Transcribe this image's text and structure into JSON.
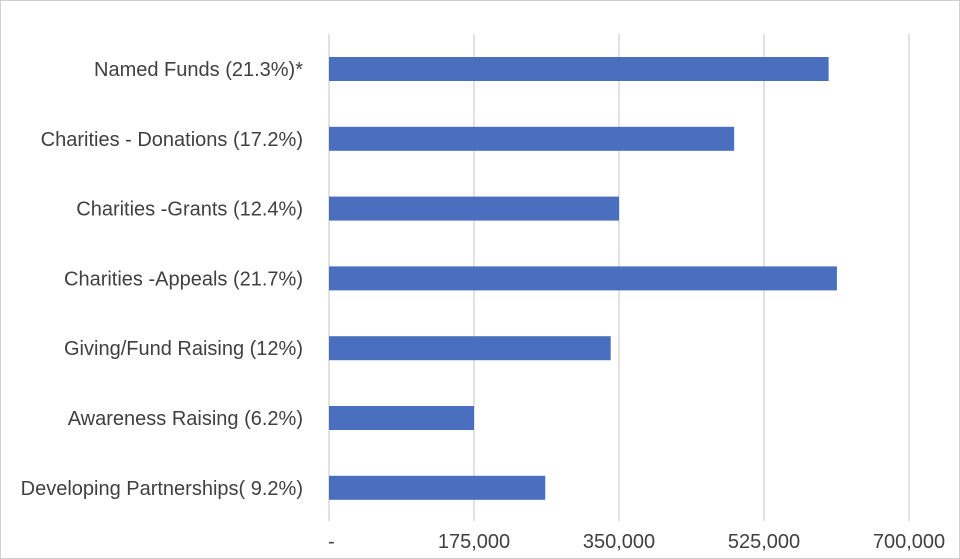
{
  "chart_data": {
    "type": "bar",
    "orientation": "horizontal",
    "categories": [
      "Named Funds (21.3%)*",
      "Charities - Donations (17.2%)",
      "Charities -Grants (12.4%)",
      "Charities -Appeals (21.7%)",
      "Giving/Fund Raising (12%)",
      "Awareness Raising (6.2%)",
      "Developing Partnerships( 9.2%)"
    ],
    "values": [
      603000,
      489000,
      350000,
      613000,
      340000,
      175000,
      261000
    ],
    "xlim": [
      0,
      700000
    ],
    "xticks": [
      0,
      175000,
      350000,
      525000,
      700000
    ],
    "xtick_labels": [
      "-",
      "175,000",
      "350,000",
      "525,000",
      "700,000"
    ],
    "grid": "vertical",
    "bar_color": "#4a6fbf",
    "grid_color": "#d9d9d9",
    "text_color": "#404040",
    "title": "",
    "xlabel": "",
    "ylabel": ""
  }
}
